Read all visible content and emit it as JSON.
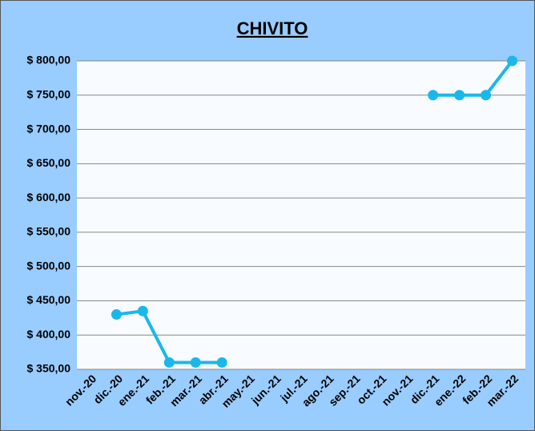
{
  "chart_data": {
    "type": "line",
    "title": "CHIVITO",
    "categories": [
      "nov.-20",
      "dic.-20",
      "ene.-21",
      "feb.-21",
      "mar.-21",
      "abr.-21",
      "may.-21",
      "jun.-21",
      "jul.-21",
      "ago.-21",
      "sep.-21",
      "oct.-21",
      "nov.-21",
      "dic.-21",
      "ene.-22",
      "feb.-22",
      "mar.-22"
    ],
    "series": [
      {
        "name": "CHIVITO",
        "color": "#1ab8ea",
        "values": [
          null,
          430,
          435,
          360,
          360,
          360,
          null,
          null,
          null,
          null,
          null,
          null,
          null,
          750,
          750,
          750,
          800
        ]
      }
    ],
    "ylim": [
      350,
      800
    ],
    "yticks": [
      {
        "value": 350,
        "label": "$ 350,00"
      },
      {
        "value": 400,
        "label": "$ 400,00"
      },
      {
        "value": 450,
        "label": "$ 450,00"
      },
      {
        "value": 500,
        "label": "$ 500,00"
      },
      {
        "value": 550,
        "label": "$ 550,00"
      },
      {
        "value": 600,
        "label": "$ 600,00"
      },
      {
        "value": 650,
        "label": "$ 650,00"
      },
      {
        "value": 700,
        "label": "$ 700,00"
      },
      {
        "value": 750,
        "label": "$ 750,00"
      },
      {
        "value": 800,
        "label": "$ 800,00"
      }
    ],
    "grid": true
  }
}
